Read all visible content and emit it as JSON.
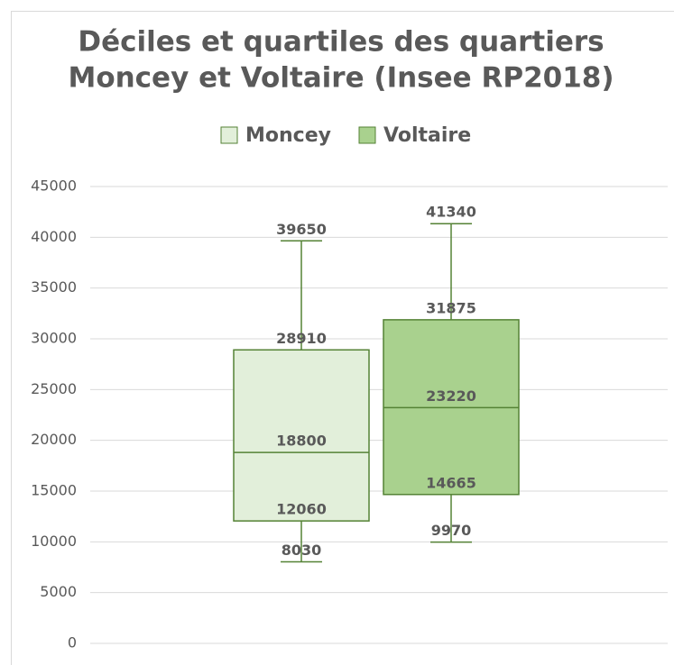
{
  "chart_data": {
    "type": "box",
    "title": [
      "Déciles et quartiles des quartiers",
      "Moncey et Voltaire (Insee RP2018)"
    ],
    "series": [
      {
        "name": "Moncey",
        "color": "#e2efda",
        "stroke": "#548235",
        "min": 8030,
        "q1": 12060,
        "median": 18800,
        "q3": 28910,
        "max": 39650
      },
      {
        "name": "Voltaire",
        "color": "#a9d18e",
        "stroke": "#548235",
        "min": 9970,
        "q1": 14665,
        "median": 23220,
        "q3": 31875,
        "max": 41340
      }
    ],
    "ylim": [
      0,
      45000
    ],
    "yticks": [
      0,
      5000,
      10000,
      15000,
      20000,
      25000,
      30000,
      35000,
      40000,
      45000
    ],
    "grid": true,
    "legend": "top"
  }
}
